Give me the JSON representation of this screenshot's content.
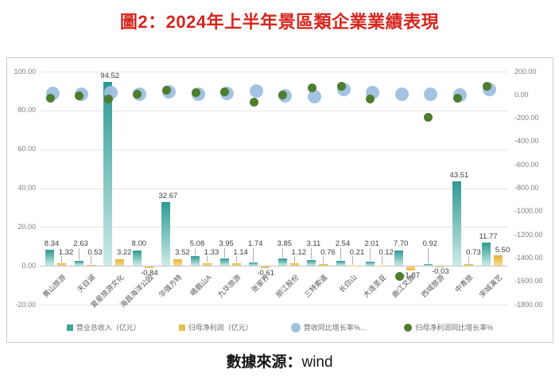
{
  "title": "圖2：2024年上半年景區類企業業績表現",
  "title_color": "#d6251d",
  "source": {
    "label": "數據來源：",
    "value": "wind"
  },
  "chart_data": {
    "type": "bar",
    "title": "圖2：2024年上半年景區類企業業績表現",
    "categories": [
      "黄山旅游",
      "天目湖",
      "复星旅游文化",
      "海昌海洋公园",
      "华强方特",
      "峨眉山A",
      "九华旅游",
      "张家界",
      "丽江股份",
      "三特索道",
      "长白山",
      "大连圣亚",
      "曲江文旅",
      "西域旅游",
      "中青旅",
      "宋城演艺"
    ],
    "series": [
      {
        "name": "营业总收入（亿元）",
        "type": "bar",
        "axis": "left",
        "legend_shape": "square",
        "legend_color": "#3fa39b",
        "color_top": "#2e9a93",
        "color_bottom": "#cdebe8",
        "values": [
          8.34,
          2.63,
          94.52,
          8.0,
          32.67,
          5.08,
          3.95,
          1.74,
          3.85,
          3.11,
          2.54,
          2.01,
          7.7,
          0.92,
          43.51,
          11.77
        ]
      },
      {
        "name": "归母净利润（亿元）",
        "type": "bar",
        "axis": "left",
        "legend_shape": "square",
        "legend_color": "#eabf4e",
        "color_top": "#e5b23c",
        "color_bottom": "#f7db90",
        "values": [
          1.32,
          0.53,
          3.22,
          -0.84,
          3.52,
          1.33,
          1.14,
          -0.61,
          1.12,
          0.76,
          0.21,
          0.12,
          -1.87,
          -0.03,
          0.73,
          5.5
        ]
      },
      {
        "name": "营收同比增长率%...",
        "type": "scatter",
        "axis": "right",
        "legend_shape": "circle",
        "legend_color": "#9fc0e0",
        "marker_size": 17,
        "values": [
          10,
          5,
          18,
          5,
          25,
          8,
          12,
          32,
          -8,
          -15,
          45,
          18,
          5,
          5,
          -3,
          45
        ]
      },
      {
        "name": "归母净利润同比增长率%",
        "type": "scatter",
        "axis": "right",
        "legend_shape": "circle",
        "legend_color": "#4d7d2d",
        "marker_size": 11,
        "values": [
          -30,
          -5,
          -38,
          3,
          40,
          20,
          25,
          -60,
          -3,
          60,
          75,
          -38,
          -1560,
          -195,
          -30,
          75
        ]
      }
    ],
    "left_axis": {
      "max": 100,
      "min": -20,
      "step": 20,
      "tick_format": "0.00"
    },
    "right_axis": {
      "max": 200,
      "min": -1800,
      "step": 200,
      "tick_format": "0.00"
    },
    "grid": true,
    "legend_position": "bottom",
    "xlabel": "",
    "ylabel": ""
  }
}
